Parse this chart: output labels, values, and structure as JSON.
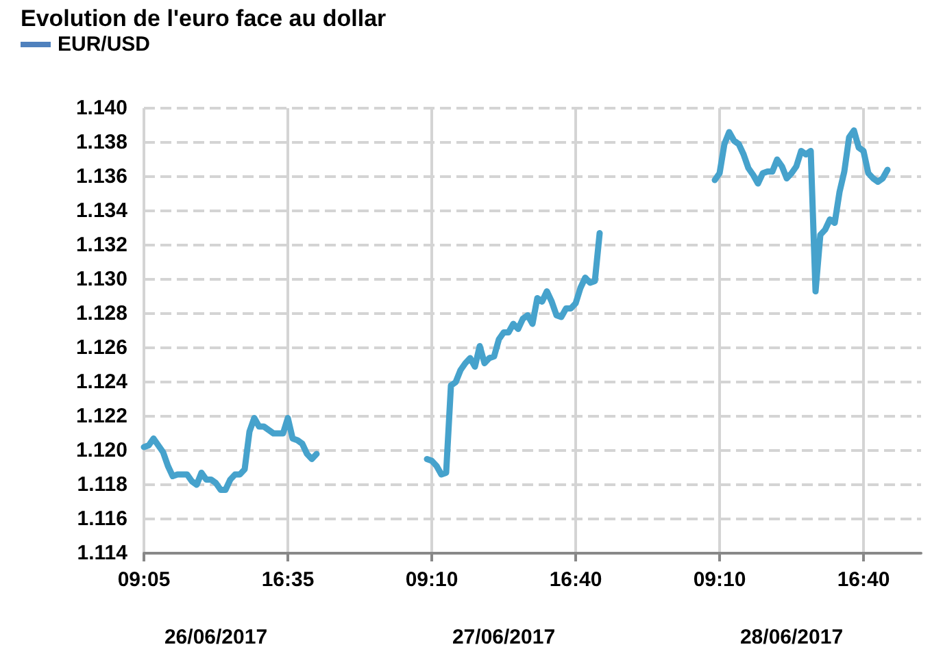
{
  "chart_data": {
    "type": "line",
    "title": "Evolution de l'euro face au dollar",
    "categories": [
      "09:05",
      null,
      null,
      null,
      null,
      null,
      null,
      null,
      null,
      null,
      null,
      null,
      null,
      null,
      null,
      null,
      null,
      null,
      null,
      null,
      null,
      null,
      null,
      null,
      null,
      null,
      null,
      null,
      null,
      null,
      "16:35",
      null,
      null,
      null,
      null,
      null,
      null,
      null,
      null,
      null,
      null,
      null,
      null,
      null,
      null,
      null,
      null,
      null,
      null,
      null,
      null,
      null,
      null,
      null,
      null,
      null,
      null,
      null,
      null,
      null,
      "09:10",
      null,
      null,
      null,
      null,
      null,
      null,
      null,
      null,
      null,
      null,
      null,
      null,
      null,
      null,
      null,
      null,
      null,
      null,
      null,
      null,
      null,
      null,
      null,
      null,
      null,
      null,
      null,
      null,
      null,
      "16:40",
      null,
      null,
      null,
      null,
      null,
      null,
      null,
      null,
      null,
      null,
      null,
      null,
      null,
      null,
      null,
      null,
      null,
      null,
      null,
      null,
      null,
      null,
      null,
      null,
      null,
      null,
      null,
      null,
      null,
      "09:10",
      null,
      null,
      null,
      null,
      null,
      null,
      null,
      null,
      null,
      null,
      null,
      null,
      null,
      null,
      null,
      null,
      null,
      null,
      null,
      null,
      null,
      null,
      null,
      null,
      null,
      null,
      null,
      null,
      null,
      "16:40",
      null,
      null,
      null,
      null,
      null,
      null,
      null,
      null,
      null,
      null,
      null,
      null
    ],
    "series": [
      {
        "name": "EUR/USD",
        "color": "#46a2cc",
        "values": [
          1.1202,
          1.1203,
          1.1207,
          1.1203,
          1.1199,
          1.1191,
          1.1185,
          1.1186,
          1.1186,
          1.1186,
          1.1182,
          1.118,
          1.1187,
          1.1183,
          1.1183,
          1.1181,
          1.1177,
          1.1177,
          1.1183,
          1.1186,
          1.1186,
          1.1189,
          1.1211,
          1.1219,
          1.1214,
          1.1214,
          1.1212,
          1.121,
          1.121,
          1.121,
          1.1219,
          1.1207,
          1.1206,
          1.1204,
          1.1198,
          1.1195,
          1.1198,
          null,
          null,
          null,
          null,
          null,
          null,
          null,
          null,
          null,
          null,
          null,
          null,
          null,
          null,
          null,
          null,
          null,
          null,
          null,
          null,
          null,
          null,
          1.1195,
          1.1194,
          1.1191,
          1.1186,
          1.1187,
          1.1238,
          1.124,
          1.1247,
          1.1251,
          1.1254,
          1.1249,
          1.1261,
          1.1251,
          1.1254,
          1.1255,
          1.1265,
          1.1269,
          1.1269,
          1.1274,
          1.1271,
          1.1277,
          1.1279,
          1.1274,
          1.1289,
          1.1287,
          1.1293,
          1.1287,
          1.1279,
          1.1278,
          1.1283,
          1.1283,
          1.1286,
          1.1295,
          1.1301,
          1.1298,
          1.1299,
          1.1327,
          null,
          null,
          null,
          null,
          null,
          null,
          null,
          null,
          null,
          null,
          null,
          null,
          null,
          null,
          null,
          null,
          null,
          null,
          null,
          null,
          null,
          null,
          null,
          1.1358,
          1.1362,
          1.1379,
          1.1386,
          1.1381,
          1.1379,
          1.1373,
          1.1365,
          1.1361,
          1.1356,
          1.1362,
          1.1363,
          1.1363,
          1.137,
          1.1366,
          1.1359,
          1.1362,
          1.1366,
          1.1375,
          1.1373,
          1.1375,
          1.1293,
          1.1326,
          1.1329,
          1.1335,
          1.1333,
          1.1351,
          1.1363,
          1.1383,
          1.1387,
          1.1377,
          1.1375,
          1.1362,
          1.1359,
          1.1357,
          1.1359,
          1.1364,
          null,
          null,
          null,
          null,
          null,
          null,
          null
        ]
      }
    ],
    "ylim": [
      1.114,
      1.14
    ],
    "yticks": [
      {
        "value": 1.114,
        "label": "1.114"
      },
      {
        "value": 1.116,
        "label": "1.116"
      },
      {
        "value": 1.118,
        "label": "1.118"
      },
      {
        "value": 1.12,
        "label": "1.120"
      },
      {
        "value": 1.122,
        "label": "1.122"
      },
      {
        "value": 1.124,
        "label": "1.124"
      },
      {
        "value": 1.126,
        "label": "1.126"
      },
      {
        "value": 1.128,
        "label": "1.128"
      },
      {
        "value": 1.13,
        "label": "1.130"
      },
      {
        "value": 1.132,
        "label": "1.132"
      },
      {
        "value": 1.134,
        "label": "1.134"
      },
      {
        "value": 1.136,
        "label": "1.136"
      },
      {
        "value": 1.138,
        "label": "1.138"
      },
      {
        "value": 1.14,
        "label": "1.140"
      }
    ],
    "annotations": [
      "26/06/2017",
      "27/06/2017",
      "28/06/2017"
    ],
    "grid": true,
    "legend": "top left",
    "marker": "none",
    "line_style": "solid"
  }
}
